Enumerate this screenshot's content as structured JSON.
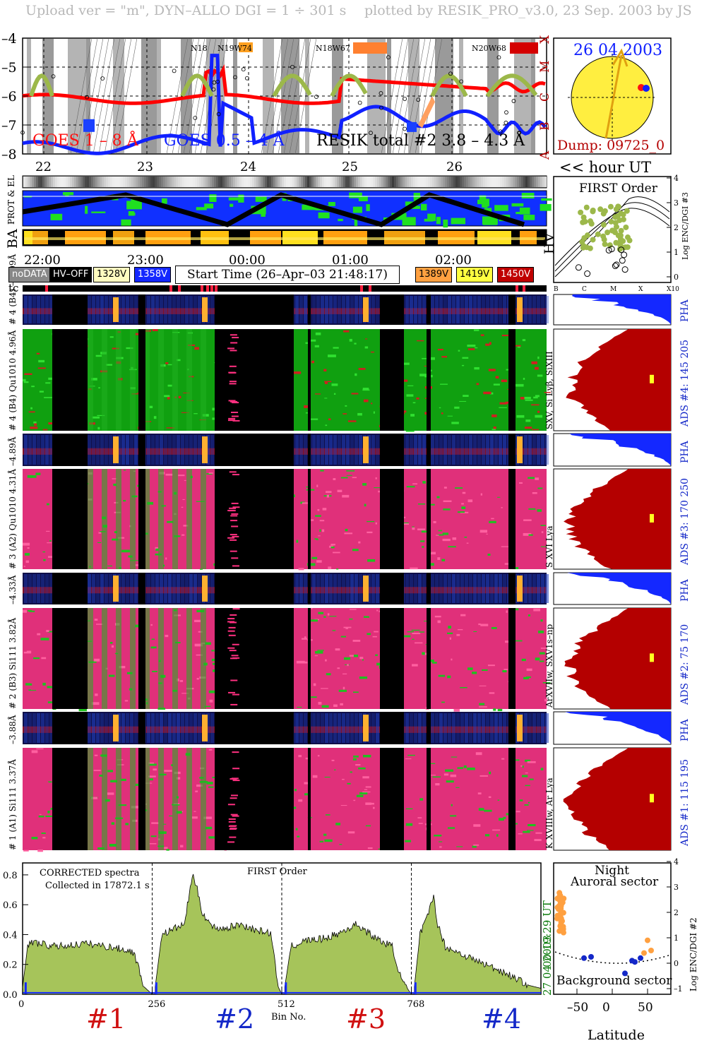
{
  "header": {
    "left": "Upload ver = \"m\", DYN–ALLO DGI =   1 ÷ 301 s",
    "right": "plotted by RESIK_PRO_v3.0, 23 Sep. 2003 by JS"
  },
  "goes": {
    "y_ticks": [
      "–4",
      "–5",
      "–6",
      "–7",
      "–8"
    ],
    "classes": [
      "X",
      "M",
      "C",
      "B",
      "A"
    ],
    "label_goes1": "GOES 1 – 8 Å",
    "label_goes05": "GOES 0.5 – 4 Å",
    "label_resik": "RESIK total #2  3.8 – 4.3 Å",
    "active_regions": [
      "N18",
      "N19W74",
      "N18W67",
      "N20W68"
    ]
  },
  "sun": {
    "date": "26 04 2003",
    "dump": "Dump: 09725_0"
  },
  "days": [
    "22",
    "23",
    "24",
    "25",
    "26"
  ],
  "hour_ut": "<< hour UT",
  "strip_labels": {
    "prot": "PROT & EL",
    "ba": "BA",
    "hv": "HV"
  },
  "hours": [
    "22:00",
    "23:00",
    "00:00",
    "01:00",
    "02:00"
  ],
  "legend": {
    "nodata": "noDATA",
    "hvoff": "HV–OFF",
    "v1": "1328V",
    "v2": "1358V",
    "v3": "1389V",
    "v4": "1419V",
    "v5": "1450V",
    "start_time": "Start Time (26–Apr–03 21:48:17)"
  },
  "tc": "tc",
  "first_order": {
    "title": "FIRST Order",
    "ylabel": "Log ENC/DGI #3",
    "y_ticks": [
      "0",
      "1",
      "2",
      "3",
      "4"
    ],
    "x_ticks": [
      "B",
      "C",
      "M",
      "X",
      "X10"
    ]
  },
  "channels": [
    {
      "pha_label": "# 4 (B4) – 6.09Å",
      "main_label": "# 4 (B4) Qu1010 4.96Å",
      "lines": "SXV, Si Lyβ, SiXIII",
      "ads": "ADS #4:  145 205",
      "pha": "PHA"
    },
    {
      "pha_label": "–4.89Å",
      "main_label": "# 3 (A2) Qu1010  4.31Å",
      "lines": "S XVI Lya",
      "ads": "ADS #3:  170 250",
      "pha": "PHA"
    },
    {
      "pha_label": "–4.33Å",
      "main_label": "# 2 (B3) Si111  3.82Å",
      "lines": "ArXVIIw, SXV1s–np",
      "ads": "ADS #2:   75 170",
      "pha": "PHA"
    },
    {
      "pha_label": "–3.88Å",
      "main_label": "# 1 (A1) Si111  3.37Å",
      "lines": "K XVIIIw, Ar Lya",
      "ads": "ADS #1:  115 195",
      "pha": "PHA"
    }
  ],
  "spectrum": {
    "note1": "CORRECTED spectra",
    "note2": "Collected in 17872.1 s",
    "order": "FIRST Order",
    "y_ticks": [
      "0.0",
      "0.2",
      "0.4",
      "0.6",
      "0.8"
    ],
    "x_ticks": [
      "0",
      "256",
      "512",
      "768"
    ],
    "xlabel": "Bin No.",
    "side_time": "00:19:29 UT",
    "side_date": "27 04 2003",
    "ch": [
      "#1",
      "#2",
      "#3",
      "#4"
    ]
  },
  "orbit": {
    "night": "Night",
    "auroral": "Auroral sector",
    "background": "Background sector",
    "xlabel": "Latitude",
    "ylabel": "Log ENC/DGI #2",
    "x_ticks": [
      "–50",
      "0",
      "50"
    ],
    "y_ticks": [
      "–1",
      "0",
      "1",
      "2",
      "3",
      "4"
    ]
  },
  "colors": {
    "goes_red": "#ff0000",
    "goes_blue": "#1020ff",
    "resik_green": "#9cb84a",
    "sun_yellow": "#ffee40",
    "dark_red": "#b40000",
    "pha_blue": "#1428ff",
    "spec_green": "#a6c45a",
    "orange": "#ffa040"
  },
  "chart_data": {
    "type": "area",
    "title": "CORRECTED spectra",
    "xlabel": "Bin No.",
    "ylabel": "",
    "xlim": [
      0,
      1024
    ],
    "ylim": [
      0,
      0.88
    ],
    "series": [
      {
        "x": [
          0,
          10,
          20,
          60,
          100,
          120,
          150,
          200,
          220,
          240,
          256
        ],
        "values": [
          0.05,
          0.32,
          0.35,
          0.32,
          0.33,
          0.34,
          0.33,
          0.3,
          0.28,
          0.05,
          0.0
        ]
      },
      {
        "x": [
          262,
          275,
          300,
          320,
          335,
          345,
          355,
          375,
          400,
          430,
          460,
          490,
          505,
          512
        ],
        "values": [
          0.05,
          0.4,
          0.44,
          0.47,
          0.8,
          0.7,
          0.55,
          0.45,
          0.44,
          0.47,
          0.43,
          0.41,
          0.05,
          0.0
        ]
      },
      {
        "x": [
          518,
          530,
          560,
          590,
          620,
          660,
          700,
          730,
          748,
          760,
          768
        ],
        "values": [
          0.05,
          0.32,
          0.36,
          0.37,
          0.4,
          0.47,
          0.37,
          0.32,
          0.1,
          0.04,
          0.0
        ]
      },
      {
        "x": [
          774,
          785,
          800,
          812,
          820,
          835,
          860,
          900,
          950,
          1000,
          1024
        ],
        "values": [
          0.05,
          0.4,
          0.52,
          0.66,
          0.47,
          0.32,
          0.28,
          0.22,
          0.15,
          0.06,
          0.04
        ]
      }
    ]
  }
}
